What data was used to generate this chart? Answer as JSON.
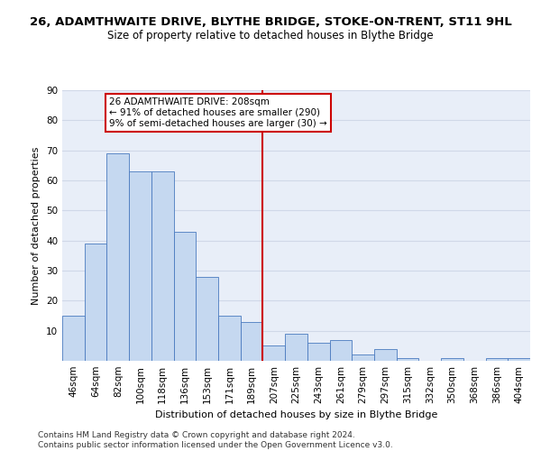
{
  "title": "26, ADAMTHWAITE DRIVE, BLYTHE BRIDGE, STOKE-ON-TRENT, ST11 9HL",
  "subtitle": "Size of property relative to detached houses in Blythe Bridge",
  "xlabel": "Distribution of detached houses by size in Blythe Bridge",
  "ylabel": "Number of detached properties",
  "categories": [
    "46sqm",
    "64sqm",
    "82sqm",
    "100sqm",
    "118sqm",
    "136sqm",
    "153sqm",
    "171sqm",
    "189sqm",
    "207sqm",
    "225sqm",
    "243sqm",
    "261sqm",
    "279sqm",
    "297sqm",
    "315sqm",
    "332sqm",
    "350sqm",
    "368sqm",
    "386sqm",
    "404sqm"
  ],
  "values": [
    15,
    39,
    69,
    63,
    63,
    43,
    28,
    15,
    13,
    5,
    9,
    6,
    7,
    2,
    4,
    1,
    0,
    1,
    0,
    1,
    1
  ],
  "bar_color": "#c5d8f0",
  "bar_edge_color": "#4a7abf",
  "annotation_text": "26 ADAMTHWAITE DRIVE: 208sqm\n← 91% of detached houses are smaller (290)\n9% of semi-detached houses are larger (30) →",
  "annotation_box_color": "#ffffff",
  "annotation_box_edge": "#cc0000",
  "vline_color": "#cc0000",
  "ylim": [
    0,
    90
  ],
  "yticks": [
    0,
    10,
    20,
    30,
    40,
    50,
    60,
    70,
    80,
    90
  ],
  "grid_color": "#d0d8e8",
  "bg_color": "#e8eef8",
  "title_fontsize": 9.5,
  "subtitle_fontsize": 8.5,
  "axis_label_fontsize": 8,
  "tick_fontsize": 7.5,
  "footer_text": "Contains HM Land Registry data © Crown copyright and database right 2024.\nContains public sector information licensed under the Open Government Licence v3.0.",
  "footer_fontsize": 6.5
}
